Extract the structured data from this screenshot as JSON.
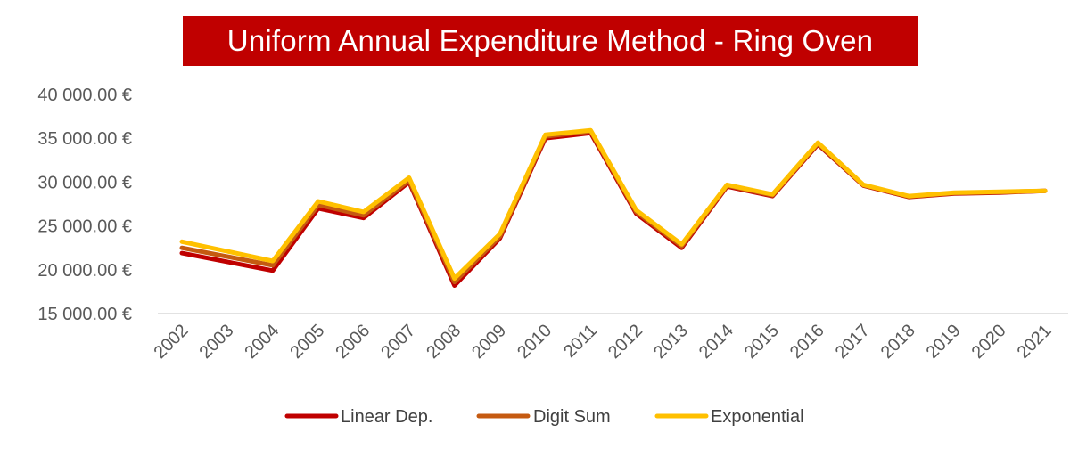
{
  "chart_data": {
    "type": "line",
    "title": "Uniform Annual Expenditure Method - Ring Oven",
    "xlabel": "",
    "ylabel": "",
    "categories": [
      "2002",
      "2003",
      "2004",
      "2005",
      "2006",
      "2007",
      "2008",
      "2009",
      "2010",
      "2011",
      "2012",
      "2013",
      "2014",
      "2015",
      "2016",
      "2017",
      "2018",
      "2019",
      "2020",
      "2021"
    ],
    "ylim": [
      15000,
      40000
    ],
    "yticks": [
      15000,
      20000,
      25000,
      30000,
      35000,
      40000
    ],
    "ytick_labels": [
      "15 000.00 €",
      "20 000.00 €",
      "25 000.00 €",
      "30 000.00 €",
      "35 000.00 €",
      "40 000.00 €"
    ],
    "grid": false,
    "legend": "bottom",
    "series": [
      {
        "name": "Linear Dep.",
        "color": "#c00000",
        "values": [
          21900,
          20900,
          19900,
          27000,
          25900,
          30000,
          18200,
          23600,
          35000,
          35600,
          26400,
          22500,
          29500,
          28400,
          34300,
          29600,
          28300,
          28700,
          28800,
          29000
        ]
      },
      {
        "name": "Digit Sum",
        "color": "#c55a11",
        "values": [
          22500,
          21500,
          20500,
          27400,
          26200,
          30200,
          18600,
          23800,
          35200,
          35800,
          26600,
          22700,
          29600,
          28500,
          34400,
          29650,
          28350,
          28750,
          28850,
          29000
        ]
      },
      {
        "name": "Exponential",
        "color": "#ffc000",
        "values": [
          23200,
          22100,
          21000,
          27800,
          26600,
          30500,
          19000,
          24100,
          35400,
          35900,
          26800,
          22900,
          29700,
          28600,
          34500,
          29700,
          28400,
          28800,
          28900,
          29000
        ]
      }
    ]
  }
}
